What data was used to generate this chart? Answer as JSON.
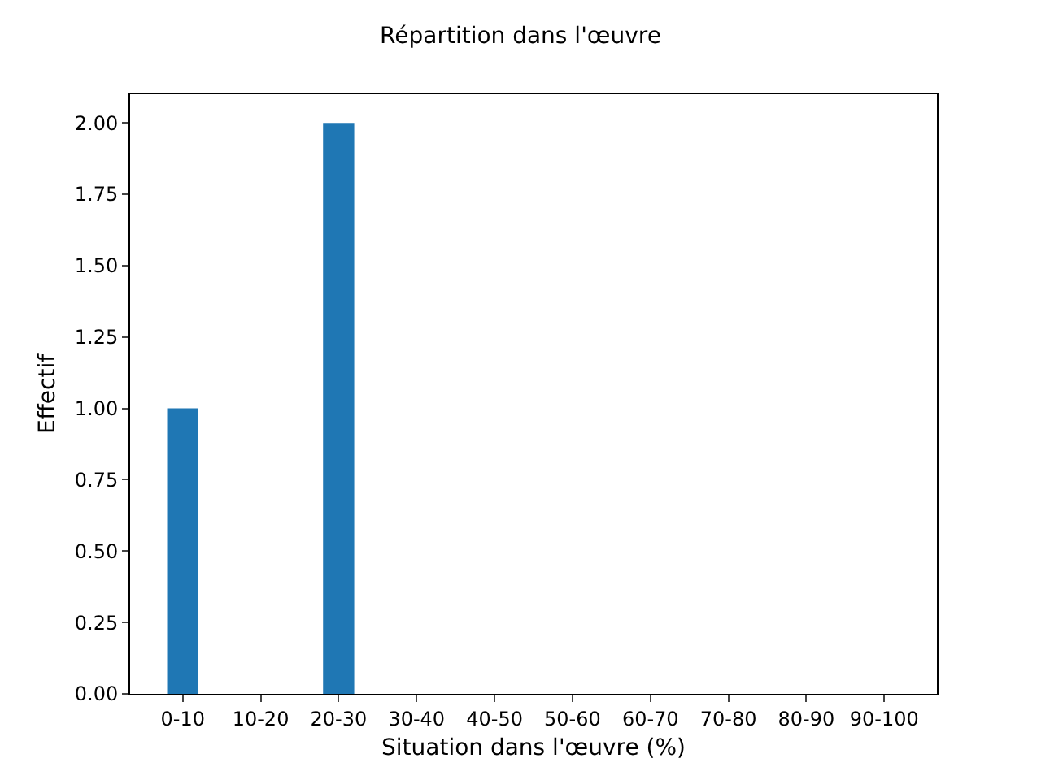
{
  "chart_data": {
    "type": "bar",
    "title": "Répartition dans l'œuvre",
    "xlabel": "Situation dans l'œuvre (%)",
    "ylabel": "Effectif",
    "categories": [
      "0-10",
      "10-20",
      "20-30",
      "30-40",
      "40-50",
      "50-60",
      "60-70",
      "70-80",
      "80-90",
      "90-100"
    ],
    "values": [
      1,
      0,
      2,
      0,
      0,
      0,
      0,
      0,
      0,
      0
    ],
    "color": "#1f77b4",
    "ylim": [
      0,
      2.1
    ],
    "yticks": [
      {
        "value": 0,
        "label": "0.00"
      },
      {
        "value": 0.25,
        "label": "0.25"
      },
      {
        "value": 0.5,
        "label": "0.50"
      },
      {
        "value": 0.75,
        "label": "0.75"
      },
      {
        "value": 1,
        "label": "1.00"
      },
      {
        "value": 1.25,
        "label": "1.25"
      },
      {
        "value": 1.5,
        "label": "1.50"
      },
      {
        "value": 1.75,
        "label": "1.75"
      },
      {
        "value": 2,
        "label": "2.00"
      }
    ],
    "grid": false,
    "legend": false
  }
}
